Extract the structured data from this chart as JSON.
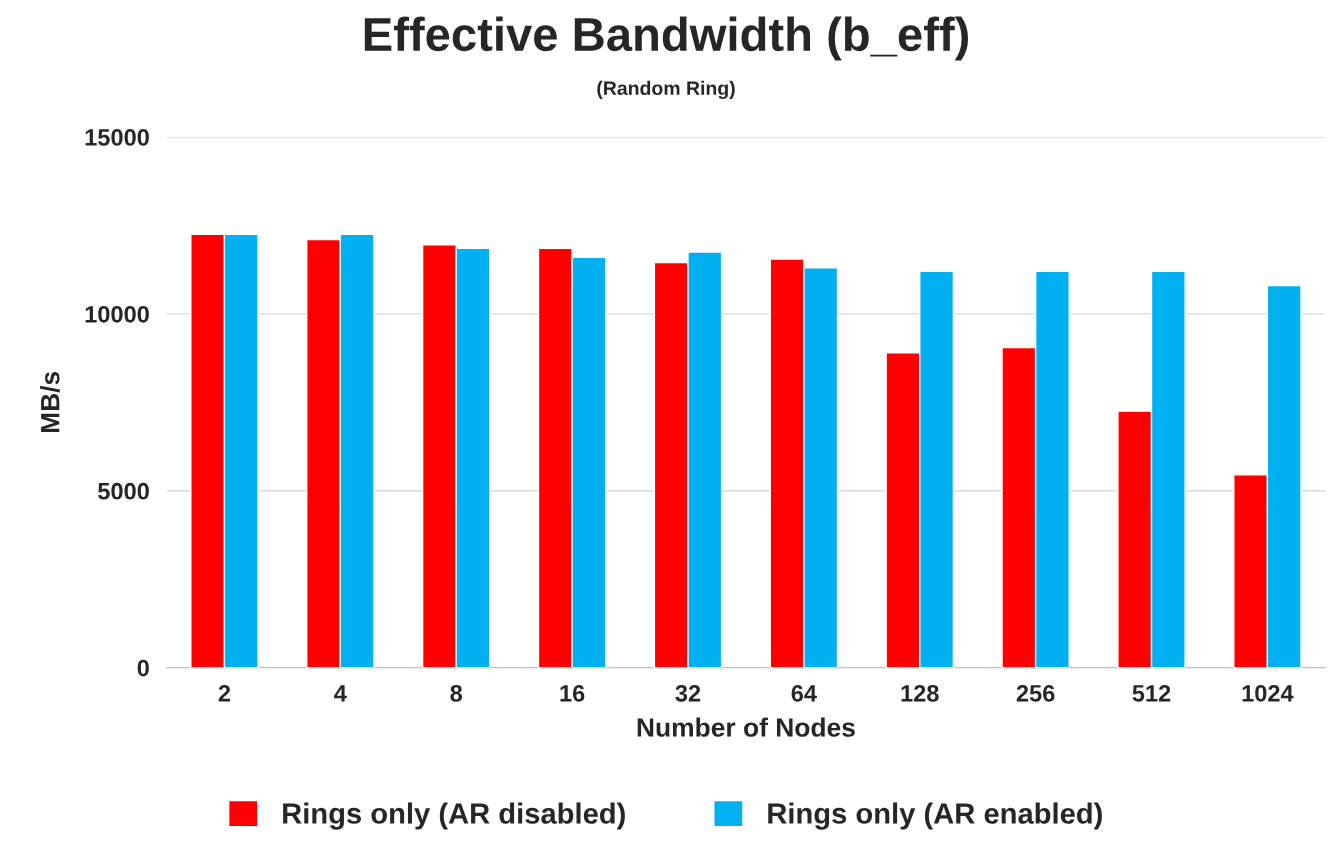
{
  "chart_data": {
    "type": "bar",
    "title": "Effective Bandwidth (b_eff)",
    "subtitle": "(Random Ring)",
    "xlabel": "Number of Nodes",
    "ylabel": "MB/s",
    "categories": [
      "2",
      "4",
      "8",
      "16",
      "32",
      "64",
      "128",
      "256",
      "512",
      "1024"
    ],
    "series": [
      {
        "name": "Rings only (AR disabled)",
        "color": "#ff0000",
        "values": [
          12250,
          12100,
          11950,
          11850,
          11450,
          11550,
          8900,
          9050,
          7250,
          5450
        ]
      },
      {
        "name": "Rings only (AR enabled)",
        "color": "#00b0f0",
        "values": [
          12250,
          12250,
          11850,
          11600,
          11750,
          11300,
          11200,
          11200,
          11200,
          10800
        ]
      }
    ],
    "ylim": [
      0,
      15000
    ],
    "yticks": [
      0,
      5000,
      10000,
      15000
    ],
    "grid": "y",
    "legend": "bottom"
  }
}
